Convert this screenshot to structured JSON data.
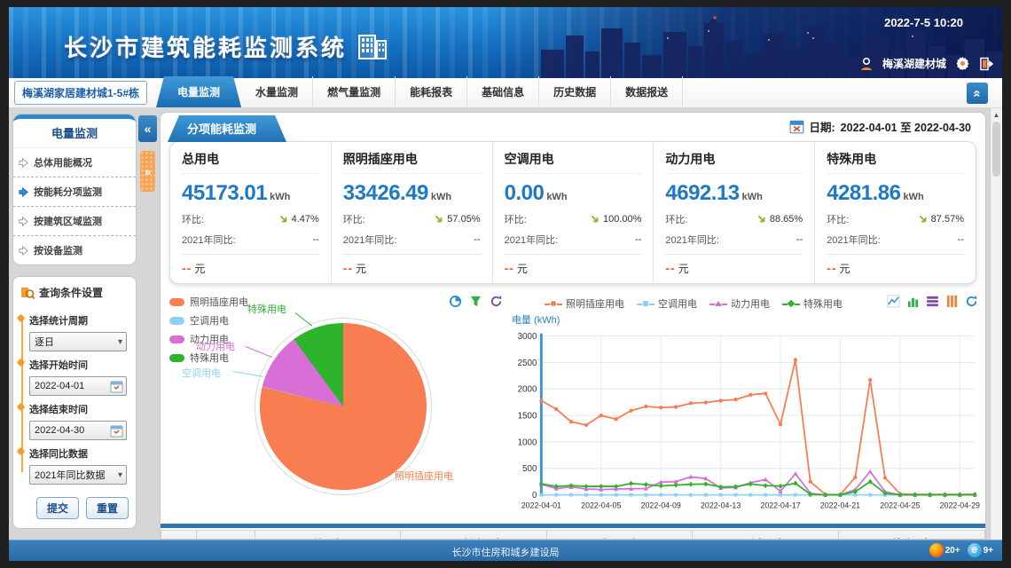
{
  "app": {
    "title": "长沙市建筑能耗监测系统",
    "datetime": "2022-7-5 10:20",
    "user": "梅溪湖建材城"
  },
  "nav": {
    "building_badge": "梅溪湖家居建材城1-5#栋",
    "tabs": [
      "电量监测",
      "水量监测",
      "燃气量监测",
      "能耗报表",
      "基础信息",
      "历史数据",
      "数据报送"
    ],
    "active_tab": "电量监测"
  },
  "sidebar": {
    "menu_title": "电量监测",
    "items": [
      {
        "label": "总体用能概况",
        "active": false
      },
      {
        "label": "按能耗分项监测",
        "active": true
      },
      {
        "label": "按建筑区域监测",
        "active": false
      },
      {
        "label": "按设备监测",
        "active": false
      }
    ],
    "query": {
      "title": "查询条件设置",
      "period_label": "选择统计周期",
      "period_value": "逐日",
      "start_label": "选择开始时间",
      "start_value": "2022-04-01",
      "end_label": "选择结束时间",
      "end_value": "2022-04-30",
      "yoy_label": "选择同比数据",
      "yoy_value": "2021年同比数据",
      "submit": "提交",
      "reset": "重置"
    }
  },
  "main": {
    "panel_tab": "分项能耗监测",
    "date_label": "日期:",
    "date_range": "2022-04-01 至 2022-04-30",
    "stats": [
      {
        "title": "总用电",
        "value": "45173.01",
        "unit": "kWh",
        "mom_label": "环比:",
        "mom": "4.47%",
        "yoy_label": "2021年同比:",
        "yoy": "--",
        "cost": "--",
        "cost_unit": "元"
      },
      {
        "title": "照明插座用电",
        "value": "33426.49",
        "unit": "kWh",
        "mom_label": "环比:",
        "mom": "57.05%",
        "yoy_label": "2021年同比:",
        "yoy": "--",
        "cost": "--",
        "cost_unit": "元"
      },
      {
        "title": "空调用电",
        "value": "0.00",
        "unit": "kWh",
        "mom_label": "环比:",
        "mom": "100.00%",
        "yoy_label": "2021年同比:",
        "yoy": "--",
        "cost": "--",
        "cost_unit": "元"
      },
      {
        "title": "动力用电",
        "value": "4692.13",
        "unit": "kWh",
        "mom_label": "环比:",
        "mom": "88.65%",
        "yoy_label": "2021年同比:",
        "yoy": "--",
        "cost": "--",
        "cost_unit": "元"
      },
      {
        "title": "特殊用电",
        "value": "4281.86",
        "unit": "kWh",
        "mom_label": "环比:",
        "mom": "87.57%",
        "yoy_label": "2021年同比:",
        "yoy": "--",
        "cost": "--",
        "cost_unit": "元"
      }
    ],
    "table_headers": [
      "",
      "",
      "总用电",
      "照明插座用电",
      "空调用电",
      "动力用电",
      "特殊用电"
    ]
  },
  "chart_data": [
    {
      "type": "pie",
      "names": [
        "照明插座用电",
        "空调用电",
        "动力用电",
        "特殊用电"
      ],
      "values": [
        33426.49,
        0,
        4692.13,
        4281.86
      ],
      "colors": [
        "#f87e52",
        "#8ed1f2",
        "#d96fd6",
        "#2db32c"
      ],
      "legend_position": "top-left"
    },
    {
      "type": "line",
      "ylabel": "电量 (kWh)",
      "ylim": [
        0,
        3000
      ],
      "ytick_step": 500,
      "x": [
        "2022-04-01",
        "2022-04-02",
        "2022-04-03",
        "2022-04-04",
        "2022-04-05",
        "2022-04-06",
        "2022-04-07",
        "2022-04-08",
        "2022-04-09",
        "2022-04-10",
        "2022-04-11",
        "2022-04-12",
        "2022-04-13",
        "2022-04-14",
        "2022-04-15",
        "2022-04-16",
        "2022-04-17",
        "2022-04-18",
        "2022-04-19",
        "2022-04-20",
        "2022-04-21",
        "2022-04-22",
        "2022-04-23",
        "2022-04-24",
        "2022-04-25",
        "2022-04-26",
        "2022-04-27",
        "2022-04-28",
        "2022-04-29",
        "2022-04-30"
      ],
      "xtick_indices": [
        0,
        4,
        8,
        12,
        16,
        20,
        24,
        28
      ],
      "series": [
        {
          "name": "照明插座用电",
          "color": "#f87e52",
          "marker": "circle",
          "values": [
            1780,
            1620,
            1380,
            1320,
            1500,
            1430,
            1590,
            1670,
            1650,
            1660,
            1730,
            1745,
            1780,
            1800,
            1890,
            1915,
            1330,
            2550,
            250,
            10,
            5,
            330,
            2170,
            320,
            20,
            10,
            10,
            10,
            10,
            15
          ]
        },
        {
          "name": "空调用电",
          "color": "#8ed1f2",
          "marker": "square",
          "values": [
            0,
            0,
            0,
            0,
            0,
            0,
            0,
            0,
            0,
            0,
            0,
            0,
            0,
            0,
            0,
            0,
            0,
            0,
            0,
            0,
            0,
            0,
            0,
            0,
            0,
            0,
            0,
            0,
            0,
            0
          ]
        },
        {
          "name": "动力用电",
          "color": "#d96fd6",
          "marker": "triangle",
          "values": [
            200,
            120,
            150,
            110,
            100,
            110,
            115,
            120,
            240,
            250,
            340,
            310,
            130,
            140,
            230,
            290,
            70,
            400,
            30,
            0,
            0,
            100,
            440,
            60,
            0,
            0,
            0,
            0,
            0,
            0
          ]
        },
        {
          "name": "特殊用电",
          "color": "#2db32c",
          "marker": "diamond",
          "values": [
            210,
            160,
            175,
            160,
            160,
            160,
            215,
            195,
            170,
            185,
            200,
            205,
            150,
            155,
            205,
            175,
            165,
            220,
            10,
            0,
            0,
            60,
            250,
            30,
            0,
            0,
            0,
            0,
            0,
            0
          ]
        }
      ],
      "grid": true,
      "legend_position": "top-center"
    }
  ],
  "colors": {
    "accent_blue": "#1d78c5",
    "trend_green": "#86b325",
    "cost_orange": "#f2572d",
    "header_blue": "#1470c0",
    "tab_blue": "#2170b4",
    "footer_blue": "#2f74b6"
  },
  "footer": {
    "org": "长沙市住房和城乡建设局",
    "browser_badges": [
      {
        "name": "firefox",
        "label": "20+"
      },
      {
        "name": "ie",
        "label": "9+"
      }
    ]
  }
}
